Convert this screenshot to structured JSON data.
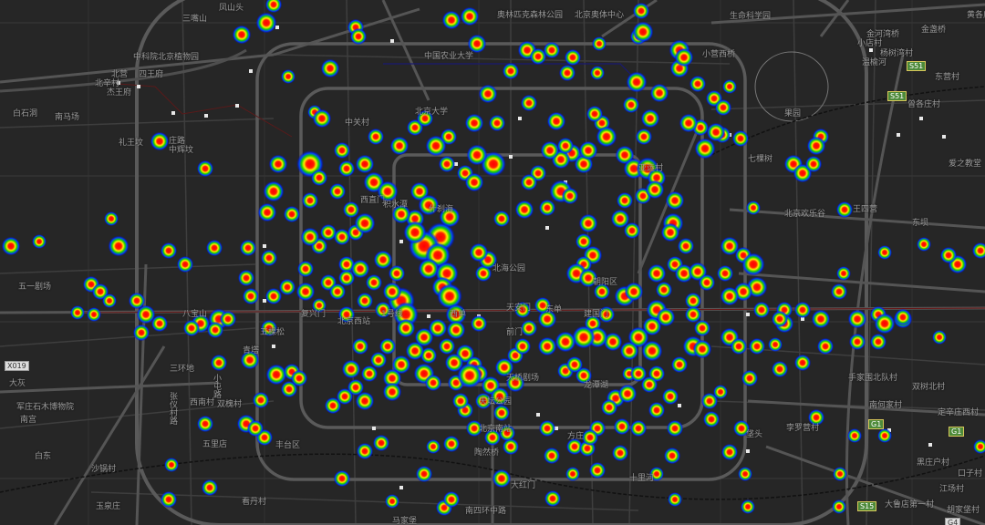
{
  "map": {
    "type": "heatmap",
    "basemap_theme": "dark",
    "heat_colors": [
      "#0000ff",
      "#00e000",
      "#ffff00",
      "#ff0000"
    ],
    "background_color": "#262626",
    "road_color": "#5e5e5e"
  },
  "labels": [
    "凤山头",
    "三嘴山",
    "中科院北京植物园",
    "北营",
    "四王府",
    "北辛村",
    "杰王府",
    "白石洞",
    "南马场",
    "礼王坟",
    "庄路",
    "中辉坟",
    "中关村",
    "北京大学",
    "中国农业大学",
    "奥林匹克森林公园",
    "北京奥体中心",
    "亚运村",
    "西直门",
    "积水潭",
    "什刹海",
    "北海公园",
    "西单",
    "东单",
    "建国门",
    "前门",
    "朝阳区",
    "生命科学园",
    "金河湾桥",
    "小店村",
    "杨树湾村",
    "温榆河",
    "东营村",
    "曾各庄村",
    "七棵树",
    "爱之教堂",
    "金盏桥",
    "黄各庄",
    "小营西桥",
    "大灰",
    "军庄石木博物院",
    "南宫",
    "白东",
    "沙锅村",
    "玉泉庄",
    "三环地",
    "青塔",
    "西南村",
    "双槐村",
    "五里店",
    "丰台区",
    "看丹村",
    "张仪村路",
    "小屯路",
    "天坛公园",
    "天桥剧场",
    "北京南站",
    "陶然桥",
    "方庄",
    "大红门",
    "龙潭湖",
    "南四环中路",
    "马家堡",
    "手家围北队村",
    "双树北村",
    "南何家村",
    "定辛庄西村",
    "孛罗营村",
    "垡头",
    "黑庄户村",
    "口子村",
    "江场村",
    "大鲁店第一村",
    "胡家垡村",
    "十里河",
    "天安门",
    "复兴门",
    "1号线",
    "北京西站",
    "五棵松",
    "八宝山",
    "五一剧场",
    "果园",
    "东坝",
    "王四营",
    "北京欢乐谷"
  ],
  "road_badges": [
    "S51",
    "S51",
    "G1",
    "G1",
    "S15",
    "X019",
    "G4"
  ]
}
